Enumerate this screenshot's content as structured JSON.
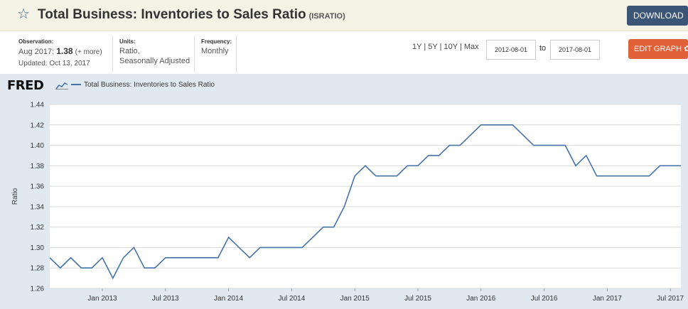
{
  "header": {
    "title": "Total Business: Inventories to Sales Ratio",
    "series_id": "(ISRATIO)",
    "download_label": "DOWNLOAD",
    "star_icon": "star-icon",
    "download_icon": "download-icon"
  },
  "meta": {
    "observation_head": "Observation:",
    "observation_period": "Aug 2017:",
    "observation_value": "1.38",
    "observation_more": "(+ more)",
    "updated": "Updated: Oct 13, 2017",
    "units_head": "Units:",
    "units_line1": "Ratio,",
    "units_line2": "Seasonally Adjusted",
    "frequency_head": "Frequency:",
    "frequency_value": "Monthly"
  },
  "controls": {
    "range_1y": "1Y",
    "range_5y": "5Y",
    "range_10y": "10Y",
    "range_max": "Max",
    "sep": "|",
    "start_date": "2012-08-01",
    "to_label": "to",
    "end_date": "2017-08-01",
    "edit_label": "EDIT GRAPH",
    "edit_icon": "gear-icon"
  },
  "chart_data": {
    "type": "line",
    "logo": "FRED",
    "legend": "Total Business: Inventories to Sales Ratio",
    "ylabel": "Ratio",
    "xlabel": "",
    "ylim": [
      1.26,
      1.44
    ],
    "y_ticks": [
      "1.26",
      "1.28",
      "1.30",
      "1.32",
      "1.34",
      "1.36",
      "1.38",
      "1.40",
      "1.42",
      "1.44"
    ],
    "x_ticks": [
      {
        "label": "Jan 2013",
        "date": "2013-01"
      },
      {
        "label": "Jul 2013",
        "date": "2013-07"
      },
      {
        "label": "Jan 2014",
        "date": "2014-01"
      },
      {
        "label": "Jul 2014",
        "date": "2014-07"
      },
      {
        "label": "Jan 2015",
        "date": "2015-01"
      },
      {
        "label": "Jul 2015",
        "date": "2015-07"
      },
      {
        "label": "Jan 2016",
        "date": "2016-01"
      },
      {
        "label": "Jul 2016",
        "date": "2016-07"
      },
      {
        "label": "Jan 2017",
        "date": "2017-01"
      },
      {
        "label": "Jul 2017",
        "date": "2017-07"
      }
    ],
    "grid": true,
    "line_color": "#4572a7",
    "series": [
      {
        "name": "Total Business: Inventories to Sales Ratio",
        "x": [
          "2012-08",
          "2012-09",
          "2012-10",
          "2012-11",
          "2012-12",
          "2013-01",
          "2013-02",
          "2013-03",
          "2013-04",
          "2013-05",
          "2013-06",
          "2013-07",
          "2013-08",
          "2013-09",
          "2013-10",
          "2013-11",
          "2013-12",
          "2014-01",
          "2014-02",
          "2014-03",
          "2014-04",
          "2014-05",
          "2014-06",
          "2014-07",
          "2014-08",
          "2014-09",
          "2014-10",
          "2014-11",
          "2014-12",
          "2015-01",
          "2015-02",
          "2015-03",
          "2015-04",
          "2015-05",
          "2015-06",
          "2015-07",
          "2015-08",
          "2015-09",
          "2015-10",
          "2015-11",
          "2015-12",
          "2016-01",
          "2016-02",
          "2016-03",
          "2016-04",
          "2016-05",
          "2016-06",
          "2016-07",
          "2016-08",
          "2016-09",
          "2016-10",
          "2016-11",
          "2016-12",
          "2017-01",
          "2017-02",
          "2017-03",
          "2017-04",
          "2017-05",
          "2017-06",
          "2017-07",
          "2017-08"
        ],
        "values": [
          1.29,
          1.28,
          1.29,
          1.28,
          1.28,
          1.29,
          1.27,
          1.29,
          1.3,
          1.28,
          1.28,
          1.29,
          1.29,
          1.29,
          1.29,
          1.29,
          1.29,
          1.31,
          1.3,
          1.29,
          1.3,
          1.3,
          1.3,
          1.3,
          1.3,
          1.31,
          1.32,
          1.32,
          1.34,
          1.37,
          1.38,
          1.37,
          1.37,
          1.37,
          1.38,
          1.38,
          1.39,
          1.39,
          1.4,
          1.4,
          1.41,
          1.42,
          1.42,
          1.42,
          1.42,
          1.41,
          1.4,
          1.4,
          1.4,
          1.4,
          1.38,
          1.39,
          1.37,
          1.37,
          1.37,
          1.37,
          1.37,
          1.37,
          1.38,
          1.38,
          1.38
        ]
      }
    ]
  }
}
